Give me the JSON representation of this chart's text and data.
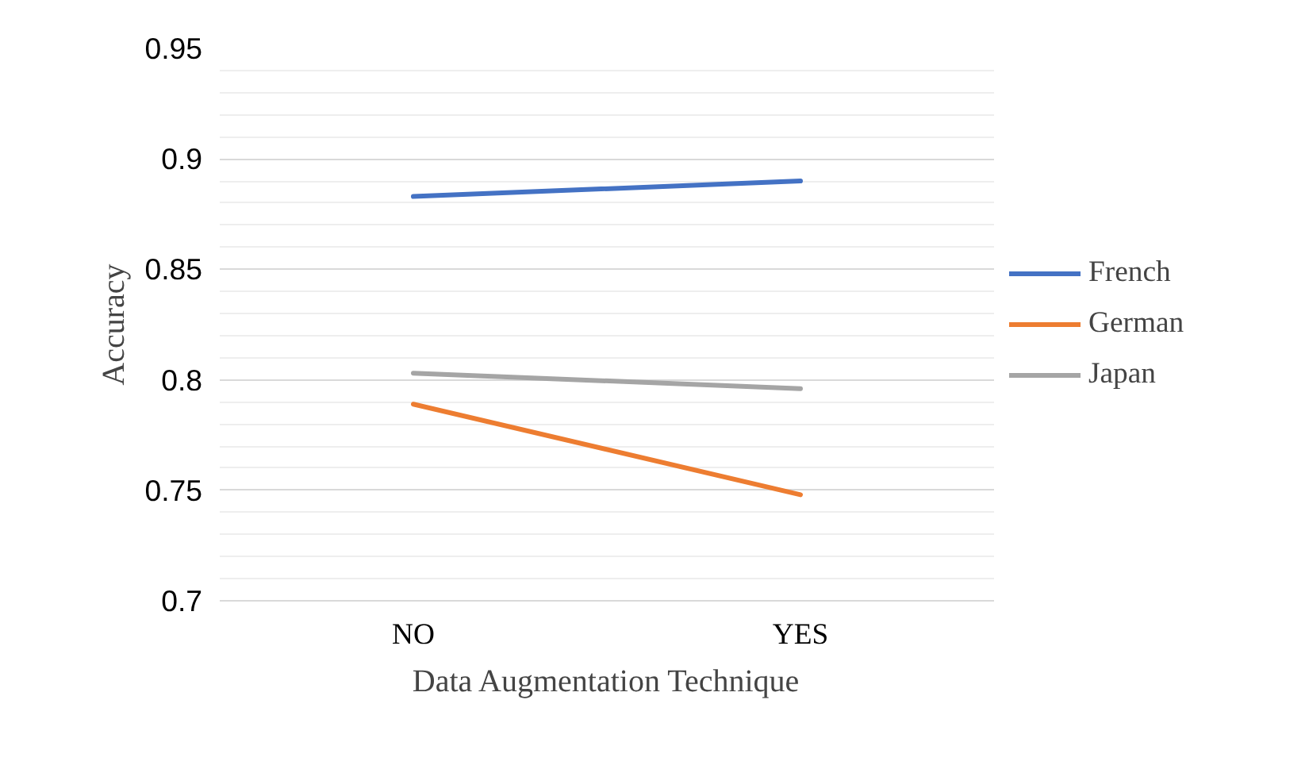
{
  "chart_data": {
    "type": "line",
    "xlabel": "Data Augmentation Technique",
    "ylabel": "Accuracy",
    "categories": [
      "NO",
      "YES"
    ],
    "series": [
      {
        "name": "French",
        "color": "#4472c4",
        "values": [
          0.883,
          0.89
        ]
      },
      {
        "name": "German",
        "color": "#ed7d31",
        "values": [
          0.789,
          0.748
        ]
      },
      {
        "name": "Japan",
        "color": "#a5a5a5",
        "values": [
          0.803,
          0.796
        ]
      }
    ],
    "ylim": [
      0.7,
      0.95
    ],
    "yticks": [
      0.7,
      {
        "value": 0.71,
        "label": null
      },
      {
        "value": 0.72,
        "label": null
      },
      {
        "value": 0.73,
        "label": null
      },
      {
        "value": 0.74,
        "label": null
      },
      0.75,
      {
        "value": 0.76,
        "label": null
      },
      {
        "value": 0.77,
        "label": null
      },
      {
        "value": 0.78,
        "label": null
      },
      {
        "value": 0.79,
        "label": null
      },
      0.8,
      {
        "value": 0.81,
        "label": null
      },
      {
        "value": 0.82,
        "label": null
      },
      {
        "value": 0.83,
        "label": null
      },
      {
        "value": 0.84,
        "label": null
      },
      0.85,
      {
        "value": 0.86,
        "label": null
      },
      {
        "value": 0.87,
        "label": null
      },
      {
        "value": 0.88,
        "label": null
      },
      {
        "value": 0.89,
        "label": null
      },
      0.9,
      {
        "value": 0.91,
        "label": null
      },
      {
        "value": 0.92,
        "label": null
      },
      {
        "value": 0.93,
        "label": null
      },
      {
        "value": 0.94,
        "label": null
      },
      0.95
    ],
    "grid": "y",
    "legend": "right",
    "marker": "none",
    "line_style": "solid"
  }
}
